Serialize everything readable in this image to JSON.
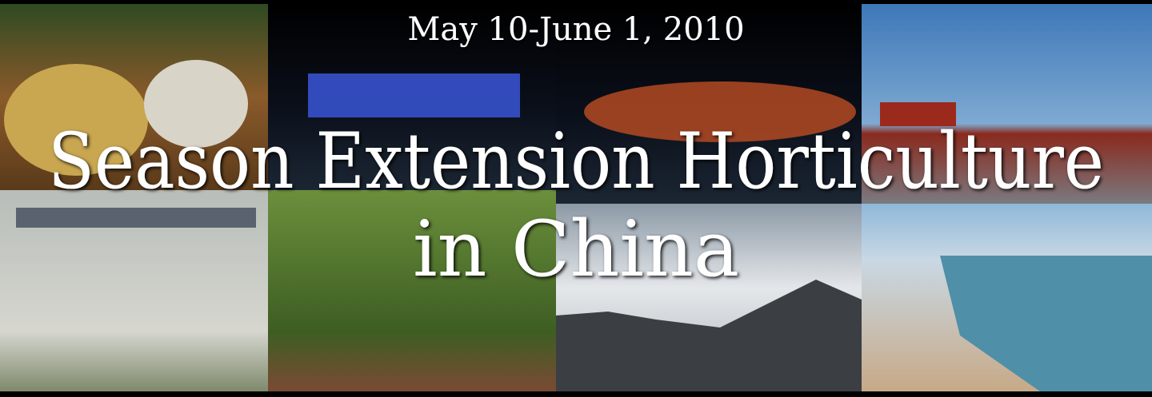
{
  "banner": {
    "date": "May 10-June 1, 2010",
    "title_line1": "Season Extension Horticulture",
    "title_line2": "in China"
  }
}
